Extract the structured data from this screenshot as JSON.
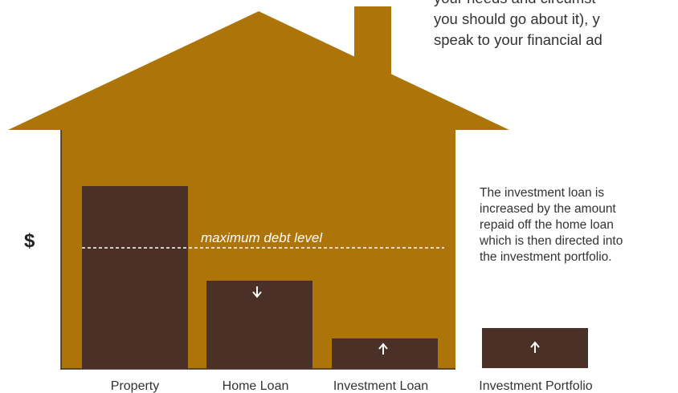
{
  "intro_lines": [
    "your needs and circumst",
    "you should go about it), y",
    "speak to your financial ad"
  ],
  "axis_label": "$",
  "threshold_label": "maximum debt level",
  "bars": [
    {
      "label": "Property"
    },
    {
      "label": "Home Loan"
    },
    {
      "label": "Investment Loan"
    },
    {
      "label": "Investment Portfolio"
    }
  ],
  "note_lines": [
    "The investment loan is",
    "increased by the amount",
    "repaid off the home loan",
    "which is then directed into",
    "the investment portfolio."
  ]
}
